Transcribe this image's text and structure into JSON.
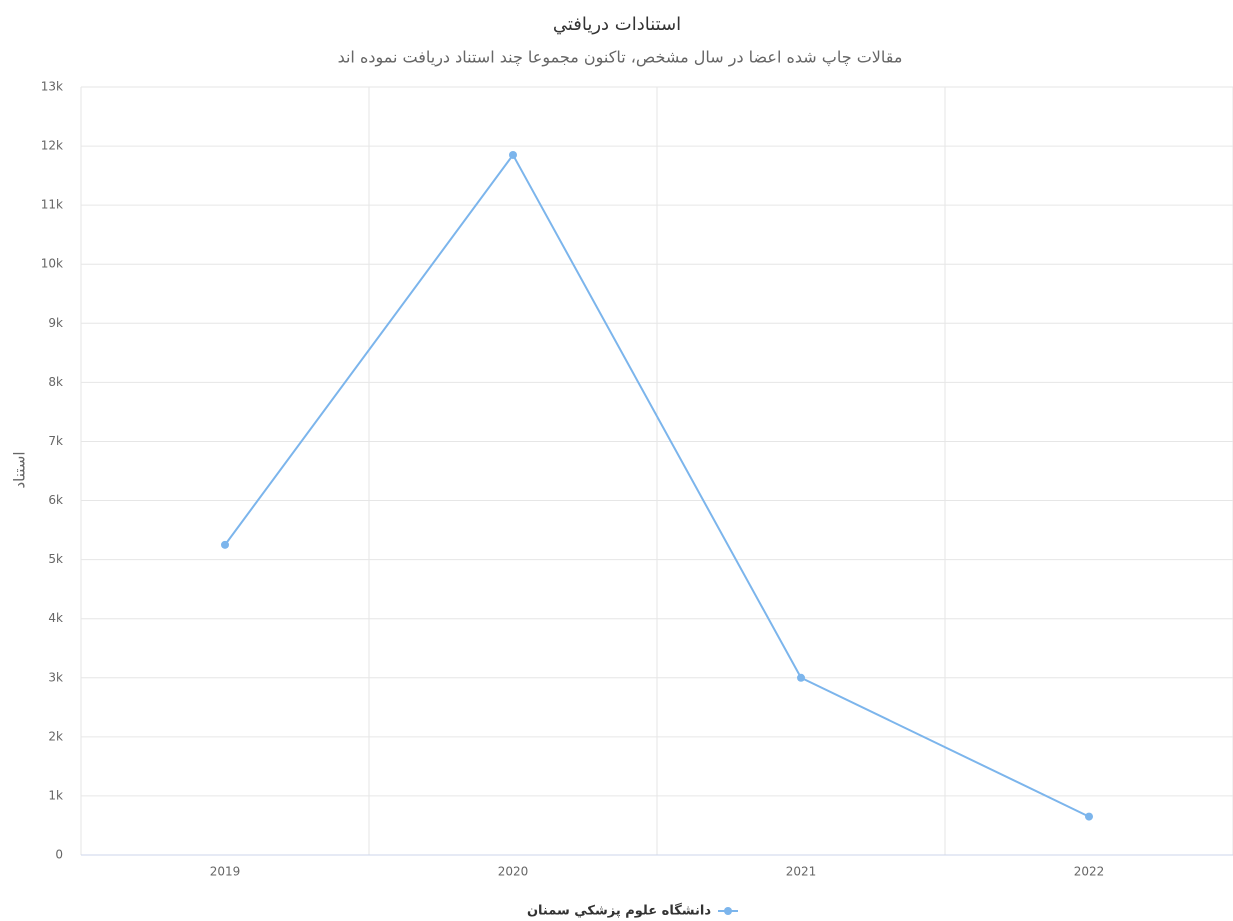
{
  "chart_data": {
    "type": "line",
    "title": "استنادات دريافتي",
    "subtitle": "مقالات چاپ شده اعضا در سال مشخص، تاكنون مجموعا چند استناد دريافت نموده اند",
    "y_label": "استناد",
    "categories": [
      "2019",
      "2020",
      "2021",
      "2022"
    ],
    "series": [
      {
        "name": "دانشگاه علوم پزشكي سمنان",
        "color": "#7cb5ec",
        "values": [
          5250,
          11850,
          3000,
          650
        ]
      }
    ],
    "ylim": [
      0,
      13000
    ],
    "yticks": [
      0,
      {
        "value": 1000,
        "label": "1k"
      },
      {
        "value": 2000,
        "label": "2k"
      },
      {
        "value": 3000,
        "label": "3k"
      },
      {
        "value": 4000,
        "label": "4k"
      },
      {
        "value": 5000,
        "label": "5k"
      },
      {
        "value": 6000,
        "label": "6k"
      },
      {
        "value": 7000,
        "label": "7k"
      },
      {
        "value": 8000,
        "label": "8k"
      },
      {
        "value": 9000,
        "label": "9k"
      },
      {
        "value": 10000,
        "label": "10k"
      },
      {
        "value": 11000,
        "label": "11k"
      },
      {
        "value": 12000,
        "label": "12k"
      },
      {
        "value": 13000,
        "label": "13k"
      }
    ],
    "grid": true,
    "legend": "bottom"
  }
}
